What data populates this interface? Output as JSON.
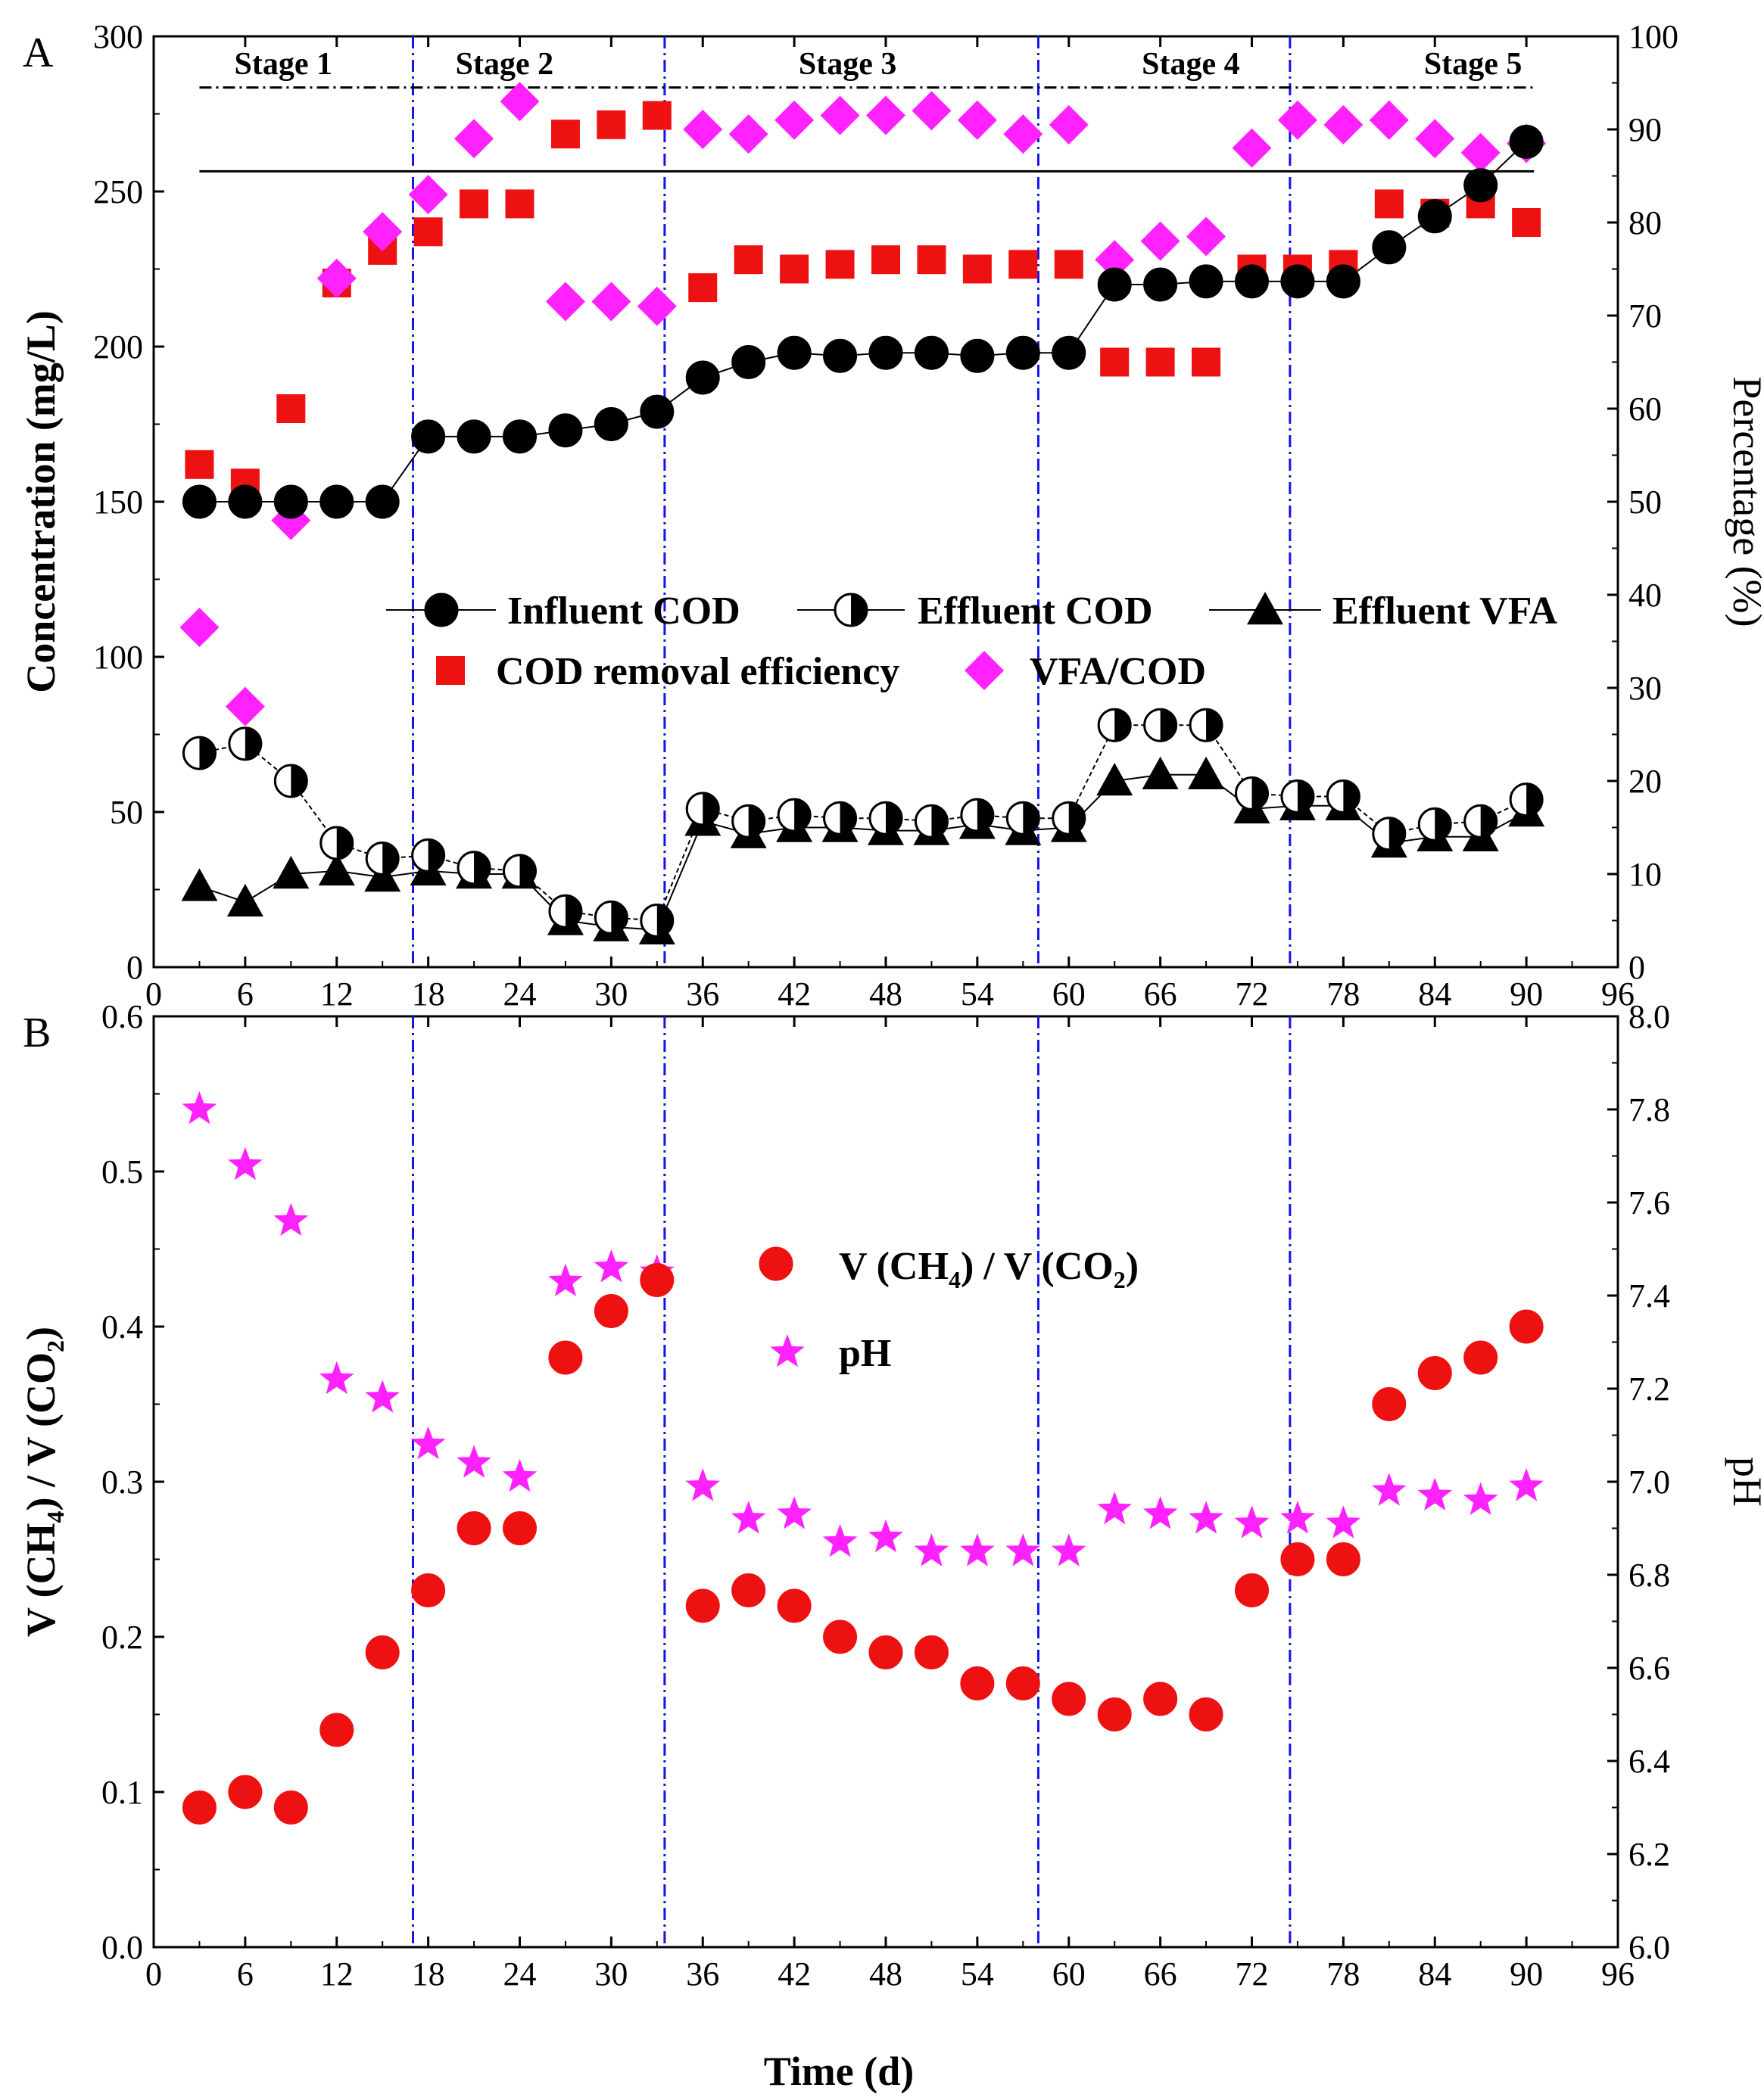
{
  "chart_data": [
    {
      "panel": "A",
      "type": "scatter",
      "xlabel": "Time (d)",
      "ylabel": "Concentration (mg/L)",
      "y2label": "Percentage (%)",
      "xlim": [
        0,
        96
      ],
      "ylim": [
        0,
        300
      ],
      "y2lim": [
        0,
        100
      ],
      "xticks": [
        "0",
        "6",
        "12",
        "18",
        "24",
        "30",
        "36",
        "42",
        "48",
        "54",
        "60",
        "66",
        "72",
        "78",
        "84",
        "90",
        "96"
      ],
      "yticks": [
        "0",
        "50",
        "100",
        "150",
        "200",
        "250",
        "300"
      ],
      "y2ticks": [
        "0",
        "10",
        "20",
        "30",
        "40",
        "50",
        "60",
        "70",
        "80",
        "90",
        "100"
      ],
      "stages": [
        "Stage 1",
        "Stage 2",
        "Stage 3",
        "Stage 4",
        "Stage 5"
      ],
      "stage_boundaries": [
        17,
        33.5,
        58,
        74.5
      ],
      "reference_lines_pct": [
        94.5,
        85.5
      ],
      "legend": {
        "influent": "Influent COD",
        "effluent_cod": "Effluent COD",
        "effluent_vfa": "Effluent VFA",
        "removal": "COD removal efficiency",
        "vfa_cod": "VFA/COD"
      },
      "x": [
        3,
        6,
        9,
        12,
        15,
        18,
        21,
        24,
        27,
        30,
        33,
        36,
        39,
        42,
        45,
        48,
        51,
        54,
        57,
        60,
        63,
        66,
        69,
        72,
        75,
        78,
        81,
        84,
        87,
        90
      ],
      "series": [
        {
          "name": "Influent COD",
          "axis": "left",
          "color": "#000000",
          "values": [
            150,
            150,
            150,
            150,
            150,
            171,
            171,
            171,
            173,
            175,
            179,
            190,
            195,
            198,
            197,
            198,
            198,
            197,
            198,
            198,
            220,
            220,
            221,
            221,
            221,
            221,
            232,
            242,
            252,
            266
          ]
        },
        {
          "name": "Effluent COD",
          "axis": "left",
          "color": "#000000",
          "values": [
            69,
            72,
            60,
            40,
            35,
            36,
            32,
            31,
            18,
            16,
            15,
            51,
            47,
            49,
            48,
            48,
            47,
            49,
            48,
            48,
            78,
            78,
            78,
            56,
            55,
            55,
            43,
            46,
            47,
            54
          ]
        },
        {
          "name": "Effluent VFA",
          "axis": "left",
          "color": "#000000",
          "values": [
            26,
            21,
            30,
            31,
            29,
            31,
            30,
            30,
            15,
            13,
            12,
            47,
            43,
            45,
            45,
            44,
            44,
            46,
            44,
            45,
            60,
            62,
            62,
            51,
            52,
            52,
            40,
            42,
            42,
            50
          ]
        },
        {
          "name": "COD removal efficiency",
          "axis": "right",
          "color": "#ee1111",
          "values": [
            54,
            52,
            60,
            73.5,
            77,
            79,
            82,
            82,
            89.5,
            90.5,
            91.5,
            73,
            76,
            75,
            75.5,
            76,
            76,
            75,
            75.5,
            75.5,
            65,
            65,
            65,
            75,
            75,
            75.5,
            82,
            81,
            82,
            80
          ]
        },
        {
          "name": "VFA/COD",
          "axis": "right",
          "color": "#ff22ff",
          "values": [
            36.5,
            28,
            48,
            74,
            79,
            83,
            89,
            93,
            71.5,
            71.5,
            71,
            90,
            89.5,
            91,
            91.5,
            91.5,
            92,
            91,
            89.5,
            90.5,
            76,
            78,
            78.5,
            88,
            91,
            90.5,
            91,
            89,
            87.5,
            88.5
          ]
        }
      ]
    },
    {
      "panel": "B",
      "type": "scatter",
      "xlabel": "Time (d)",
      "ylabel": "V (CH4) / V (CO2)",
      "y2label": "pH",
      "xlim": [
        0,
        96
      ],
      "ylim": [
        0,
        0.6
      ],
      "y2lim": [
        6.0,
        8.0
      ],
      "xticks": [
        "0",
        "6",
        "12",
        "18",
        "24",
        "30",
        "36",
        "42",
        "48",
        "54",
        "60",
        "66",
        "72",
        "78",
        "84",
        "90",
        "96"
      ],
      "yticks": [
        "0.0",
        "0.1",
        "0.2",
        "0.3",
        "0.4",
        "0.5",
        "0.6"
      ],
      "y2ticks": [
        "6.0",
        "6.2",
        "6.4",
        "6.6",
        "6.8",
        "7.0",
        "7.2",
        "7.4",
        "7.6",
        "7.8",
        "8.0"
      ],
      "legend": {
        "ratio": "V (CH4) / V (CO2)",
        "ph": "pH"
      },
      "x": [
        3,
        6,
        9,
        12,
        15,
        18,
        21,
        24,
        27,
        30,
        33,
        36,
        39,
        42,
        45,
        48,
        51,
        54,
        57,
        60,
        63,
        66,
        69,
        72,
        75,
        78,
        81,
        84,
        87,
        90
      ],
      "series": [
        {
          "name": "V (CH4) / V (CO2)",
          "axis": "left",
          "color": "#ee1111",
          "values": [
            0.09,
            0.1,
            0.09,
            0.14,
            0.19,
            0.23,
            0.27,
            0.27,
            0.38,
            0.41,
            0.43,
            0.22,
            0.23,
            0.22,
            0.2,
            0.19,
            0.19,
            0.17,
            0.17,
            0.16,
            0.15,
            0.16,
            0.15,
            0.23,
            0.25,
            0.25,
            0.35,
            0.37,
            0.38,
            0.4
          ]
        },
        {
          "name": "pH",
          "axis": "right",
          "color": "#ff22ff",
          "values": [
            7.8,
            7.68,
            7.56,
            7.22,
            7.18,
            7.08,
            7.04,
            7.01,
            7.43,
            7.46,
            7.45,
            6.99,
            6.92,
            6.93,
            6.87,
            6.88,
            6.85,
            6.85,
            6.85,
            6.85,
            6.94,
            6.93,
            6.92,
            6.91,
            6.92,
            6.91,
            6.98,
            6.97,
            6.96,
            6.99
          ]
        }
      ]
    }
  ]
}
